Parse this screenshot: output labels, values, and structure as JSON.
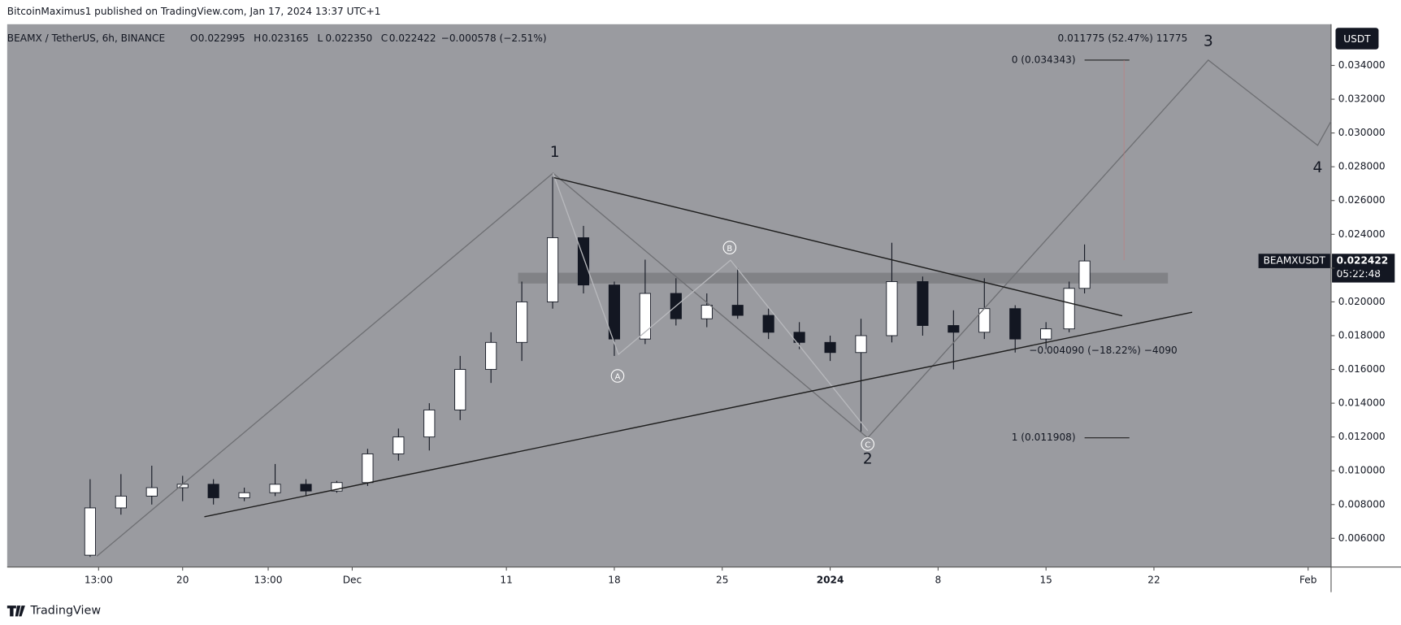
{
  "header": {
    "publisher": "BitcoinMaximus1 published on TradingView.com, Jan 17, 2024 13:37 UTC+1",
    "brand": "TradingView"
  },
  "legend": {
    "symbol": "BEAMX / TetherUS, 6h, BINANCE",
    "ohlc": [
      {
        "key": "O",
        "value": "0.022995"
      },
      {
        "key": "H",
        "value": "0.023165"
      },
      {
        "key": "L",
        "value": "0.022350"
      },
      {
        "key": "C",
        "value": "0.022422"
      }
    ],
    "change": "−0.000578 (−2.51%)"
  },
  "price_axis": {
    "currency": "USDT",
    "symbol": "BEAMXUSDT",
    "price": 0.022422,
    "countdown": "05:22:48"
  },
  "annotations": {
    "wave_1": "1",
    "wave_2": "2",
    "wave_3": "3",
    "wave_4": "4",
    "wave_a": "A",
    "wave_b": "B",
    "wave_c": "C",
    "fib_0": "0 (0.034343)",
    "fib_1": "1 (0.011908)",
    "target": "0.011775 (52.47%) 11775",
    "drop": "−0.004090 (−18.22%) −4090"
  },
  "chart_data": {
    "type": "candlestick",
    "up_color": "#ffffff",
    "down_color": "#131722",
    "background": "#9a9ba0",
    "xlim": [
      -21.38,
      64.49
    ],
    "ylim": [
      0.0043,
      0.03644
    ],
    "xticks": [
      {
        "value": -15.45,
        "label": "13:00"
      },
      {
        "value": -10,
        "label": "20"
      },
      {
        "value": -4.45,
        "label": "13:00"
      },
      {
        "value": 1,
        "label": "Dec"
      },
      11,
      18,
      25,
      {
        "value": 32,
        "label": "2024"
      },
      {
        "value": 39,
        "label": "8"
      },
      {
        "value": 46,
        "label": "15"
      },
      {
        "value": 53,
        "label": "22"
      },
      {
        "value": 63,
        "label": "Feb"
      }
    ],
    "yticks": [
      {
        "value": 0.006,
        "label": "0.006000"
      },
      {
        "value": 0.008,
        "label": "0.008000"
      },
      {
        "value": 0.01,
        "label": "0.010000"
      },
      {
        "value": 0.012,
        "label": "0.012000"
      },
      {
        "value": 0.014,
        "label": "0.014000"
      },
      {
        "value": 0.016,
        "label": "0.016000"
      },
      {
        "value": 0.018,
        "label": "0.018000"
      },
      {
        "value": 0.02,
        "label": "0.020000"
      },
      {
        "value": 0.022,
        "label": "0.022000"
      },
      {
        "value": 0.024,
        "label": "0.024000"
      },
      {
        "value": 0.026,
        "label": "0.026000"
      },
      {
        "value": 0.028,
        "label": "0.028000"
      },
      {
        "value": 0.03,
        "label": "0.030000"
      },
      {
        "value": 0.032,
        "label": "0.032000"
      },
      {
        "value": 0.034,
        "label": "0.034000"
      }
    ],
    "x": [
      -16,
      -14,
      -12,
      -10,
      -8,
      -6,
      -4,
      -2,
      0,
      2,
      4,
      6,
      8,
      10,
      12,
      14,
      16,
      18,
      20,
      22,
      24,
      26,
      28,
      30,
      32,
      34,
      36,
      38,
      40,
      42,
      44,
      46,
      47.5,
      48.5
    ],
    "open": [
      0.005,
      0.0078,
      0.0085,
      0.009,
      0.0092,
      0.0084,
      0.0087,
      0.0092,
      0.0088,
      0.0093,
      0.011,
      0.012,
      0.0136,
      0.016,
      0.0176,
      0.02,
      0.0238,
      0.021,
      0.0178,
      0.0205,
      0.019,
      0.0198,
      0.0192,
      0.0182,
      0.0176,
      0.017,
      0.018,
      0.0212,
      0.0186,
      0.0182,
      0.0196,
      0.0178,
      0.0184,
      0.0208
    ],
    "high": [
      0.0095,
      0.0098,
      0.0103,
      0.0097,
      0.0095,
      0.009,
      0.0104,
      0.0095,
      0.0094,
      0.0113,
      0.0125,
      0.014,
      0.0168,
      0.0182,
      0.0212,
      0.0274,
      0.0245,
      0.0212,
      0.0225,
      0.0214,
      0.0205,
      0.022,
      0.0196,
      0.0188,
      0.018,
      0.019,
      0.0235,
      0.0215,
      0.0195,
      0.0214,
      0.0198,
      0.0188,
      0.0212,
      0.0234
    ],
    "low": [
      0.0049,
      0.0074,
      0.008,
      0.0082,
      0.008,
      0.0082,
      0.0085,
      0.0085,
      0.0087,
      0.0091,
      0.0106,
      0.0112,
      0.013,
      0.0152,
      0.0165,
      0.0196,
      0.0205,
      0.0168,
      0.0175,
      0.0186,
      0.0185,
      0.019,
      0.0178,
      0.0172,
      0.0165,
      0.0123,
      0.0176,
      0.018,
      0.016,
      0.0178,
      0.017,
      0.0172,
      0.0182,
      0.0205
    ],
    "close": [
      0.0078,
      0.0085,
      0.009,
      0.0092,
      0.0084,
      0.0087,
      0.0092,
      0.0088,
      0.0093,
      0.011,
      0.012,
      0.0136,
      0.016,
      0.0176,
      0.02,
      0.0238,
      0.021,
      0.0178,
      0.0205,
      0.019,
      0.0198,
      0.0192,
      0.0182,
      0.0176,
      0.017,
      0.018,
      0.0212,
      0.0186,
      0.0182,
      0.0196,
      0.0178,
      0.0184,
      0.0208,
      0.022422
    ]
  }
}
